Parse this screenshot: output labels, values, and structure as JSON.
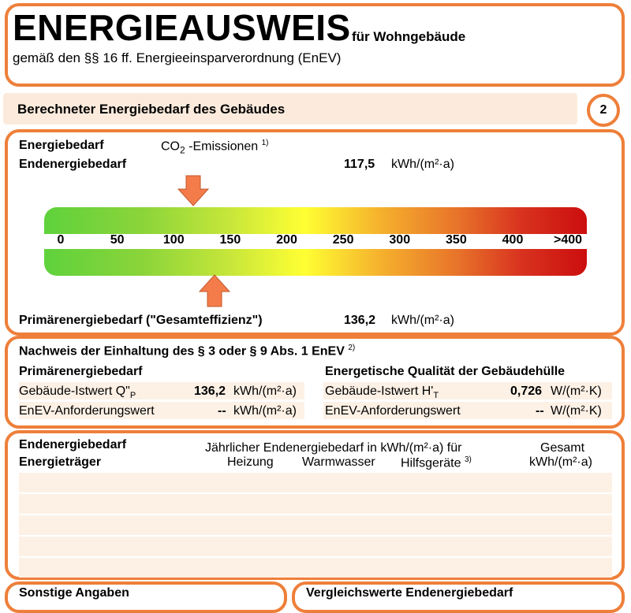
{
  "header": {
    "title": "ENERGIEAUSWEIS",
    "subtitle": "für Wohngebäude",
    "regulation": "gemäß den §§ 16 ff. Energieeinsparverordnung (EnEV)"
  },
  "section2": {
    "title": "Berechneter Energiebedarf des Gebäudes",
    "page_number": "2"
  },
  "demand": {
    "label": "Energiebedarf",
    "co2_prefix": "CO",
    "co2_sub": "2",
    "co2_suffix": " -Emissionen",
    "co2_footnote": "1)",
    "final_label": "Endenergiebedarf",
    "final_value": "117,5",
    "final_unit": "kWh/(m²·a)",
    "primary_label": "Primärenergiebedarf (\"Gesamteffizienz\")",
    "primary_value": "136,2",
    "primary_unit": "kWh/(m²·a)",
    "scale_ticks": [
      "0",
      "50",
      "100",
      "150",
      "200",
      "250",
      "300",
      "350",
      "400",
      ">400"
    ],
    "scale_min": 0,
    "scale_max": 400,
    "final_marker_value": 117.5,
    "primary_marker_value": 136.2,
    "arrow_color": "#f47c4a"
  },
  "compliance": {
    "title": "Nachweis der Einhaltung des § 3 oder § 9 Abs. 1 EnEV",
    "footnote": "2)",
    "left_heading": "Primärenergiebedarf",
    "left_row1_label": "Gebäude-Istwert Q\"",
    "left_row1_sub": "P",
    "left_row1_value": "136,2",
    "left_row1_unit": "kWh/(m²·a)",
    "left_row2_label": "EnEV-Anforderungswert",
    "left_row2_value": "--",
    "left_row2_unit": "kWh/(m²·a)",
    "right_heading": "Energetische Qualität der Gebäudehülle",
    "right_row1_label": "Gebäude-Istwert H'",
    "right_row1_sub": "T",
    "right_row1_value": "0,726",
    "right_row1_unit": "W/(m²·K)",
    "right_row2_label": "EnEV-Anforderungswert",
    "right_row2_value": "--",
    "right_row2_unit": "W/(m²·K)"
  },
  "final_energy": {
    "title": "Endenergiebedarf",
    "carrier_label": "Energieträger",
    "annual_label": "Jährlicher Endenergiebedarf in kWh/(m²·a) für",
    "heating": "Heizung",
    "hot_water": "Warmwasser",
    "auxiliary": "Hilfsgeräte",
    "aux_footnote": "3)",
    "total": "Gesamt",
    "total_unit": "kWh/(m²·a)"
  },
  "bottom": {
    "left_label": "Sonstige Angaben",
    "right_label": "Vergleichswerte Endenergiebedarf"
  },
  "colors": {
    "accent": "#ee7f3a",
    "fill": "#fdf1e6"
  }
}
